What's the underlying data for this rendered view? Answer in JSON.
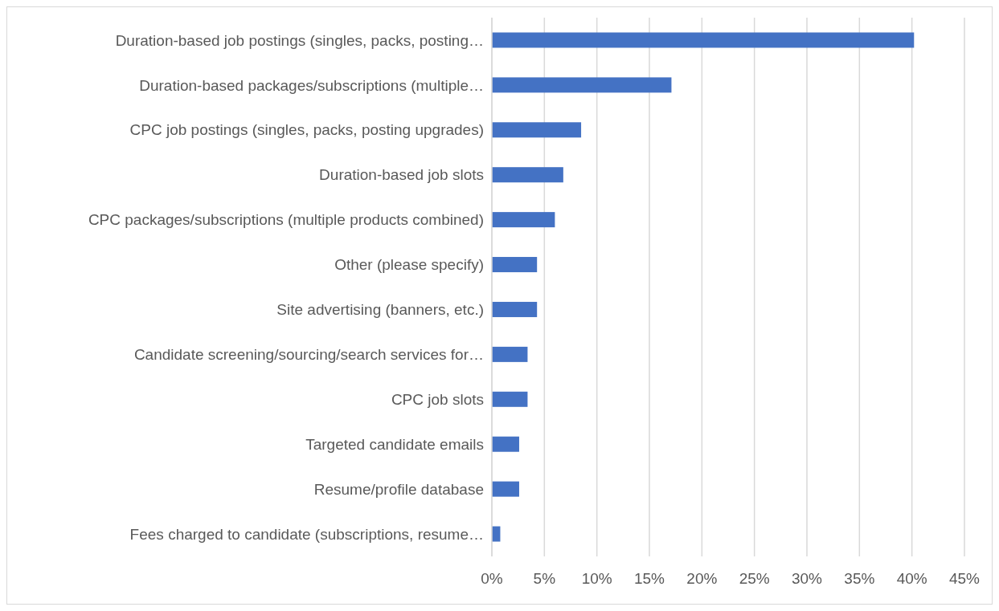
{
  "chart_data": {
    "type": "bar",
    "orientation": "horizontal",
    "categories": [
      "Duration-based job postings (singles, packs, posting…",
      "Duration-based packages/subscriptions (multiple…",
      "CPC job postings (singles, packs, posting upgrades)",
      "Duration-based job slots",
      "CPC packages/subscriptions (multiple products combined)",
      "Other (please specify)",
      "Site advertising (banners, etc.)",
      "Candidate screening/sourcing/search services for…",
      "CPC job slots",
      "Targeted candidate emails",
      "Resume/profile database",
      "Fees charged to candidate (subscriptions, resume…"
    ],
    "values": [
      40.2,
      17.1,
      8.5,
      6.8,
      6.0,
      4.3,
      4.3,
      3.4,
      3.4,
      2.6,
      2.6,
      0.8
    ],
    "color": "#4472c4",
    "xlim": [
      0,
      45
    ],
    "xticks": [
      {
        "value": 0,
        "label": "0%"
      },
      {
        "value": 5,
        "label": "5%"
      },
      {
        "value": 10,
        "label": "10%"
      },
      {
        "value": 15,
        "label": "15%"
      },
      {
        "value": 20,
        "label": "20%"
      },
      {
        "value": 25,
        "label": "25%"
      },
      {
        "value": 30,
        "label": "30%"
      },
      {
        "value": 35,
        "label": "35%"
      },
      {
        "value": 40,
        "label": "40%"
      },
      {
        "value": 45,
        "label": "45%"
      }
    ],
    "grid": "x"
  }
}
